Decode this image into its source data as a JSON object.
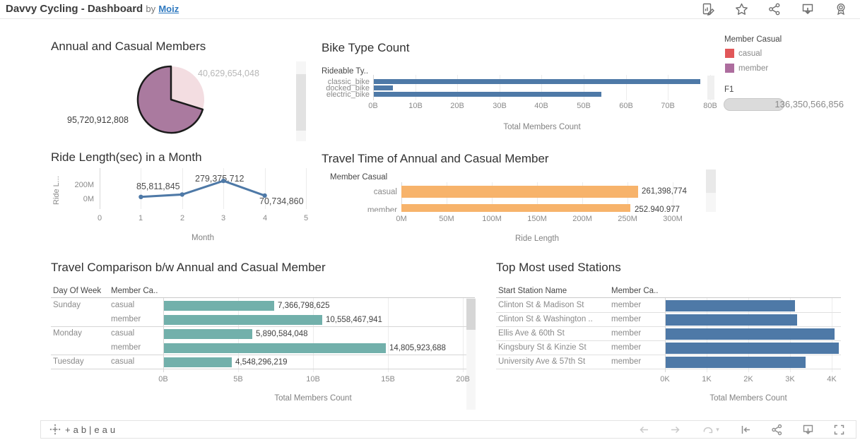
{
  "header": {
    "title": "Davvy Cycling - Dashboard",
    "by_text": "by",
    "author": "Moiz",
    "icons": [
      "metrics-edit",
      "favorite",
      "share",
      "download",
      "badge"
    ]
  },
  "legend": {
    "title": "Member Casual",
    "items": [
      {
        "label": "casual",
        "color": "#e15759"
      },
      {
        "label": "member",
        "color": "#ad6d9e"
      }
    ]
  },
  "f1_filter": {
    "label": "F1",
    "value": "136,350,566,856"
  },
  "chart_data": [
    {
      "id": "annual_casual_pie",
      "type": "pie",
      "title": "Annual and Casual Members",
      "slices": [
        {
          "label": "casual",
          "value": 40629654048,
          "display": "40,629,654,048",
          "color": "#f3dde1"
        },
        {
          "label": "member",
          "value": 95720912808,
          "display": "95,720,912,808",
          "color": "#aa7a9f",
          "outlined": true
        }
      ]
    },
    {
      "id": "bike_type_count",
      "type": "bar",
      "title": "Bike Type Count",
      "row_header": "Rideable Ty..",
      "categories": [
        "classic_bike",
        "docked_bike",
        "electric_bike"
      ],
      "values_billions": [
        77.5,
        4.5,
        54
      ],
      "values_estimated": true,
      "bar_color": "#4e79a7",
      "ticks": [
        "0B",
        "10B",
        "20B",
        "30B",
        "40B",
        "50B",
        "60B",
        "70B",
        "80B"
      ],
      "xlim_billions": [
        0,
        80
      ],
      "xlabel": "Total Members Count"
    },
    {
      "id": "ride_length_by_month",
      "type": "line",
      "title": "Ride Length(sec) in a Month",
      "ylabel": "Ride L...",
      "xlabel": "Month",
      "x": [
        1,
        2,
        3,
        4
      ],
      "y": [
        52000000,
        85811845,
        279375712,
        70734860
      ],
      "point_labels": [
        "",
        "85,811,845",
        "279,375,712",
        "70,734,860"
      ],
      "x_ticks": [
        "0",
        "1",
        "2",
        "3",
        "4",
        "5"
      ],
      "y_ticks": [
        "200M",
        "0M"
      ],
      "xlim": [
        0,
        5
      ],
      "line_color": "#4e79a7"
    },
    {
      "id": "travel_time",
      "type": "bar",
      "title": "Travel Time of Annual and Casual Member",
      "row_header": "Member Casual",
      "categories": [
        "casual",
        "member"
      ],
      "values": [
        261398774,
        252940977
      ],
      "value_labels": [
        "261,398,774",
        "252,940,977"
      ],
      "bar_color": "#f7b36b",
      "ticks": [
        "0M",
        "50M",
        "100M",
        "150M",
        "200M",
        "250M",
        "300M"
      ],
      "xlim_millions": [
        0,
        300
      ],
      "xlabel": "Ride Length",
      "clipped_note": "second row partially hidden by panel edge"
    },
    {
      "id": "travel_comparison",
      "type": "bar",
      "title": "Travel Comparison b/w Annual and Casual Member",
      "col_headers": [
        "Day Of Week",
        "Member Ca.."
      ],
      "rows": [
        {
          "day": "Sunday",
          "member_type": "casual",
          "value": 7366798625,
          "display": "7,366,798,625"
        },
        {
          "day": "",
          "member_type": "member",
          "value": 10558467941,
          "display": "10,558,467,941"
        },
        {
          "day": "Monday",
          "member_type": "casual",
          "value": 5890584048,
          "display": "5,890,584,048"
        },
        {
          "day": "",
          "member_type": "member",
          "value": 14805923688,
          "display": "14,805,923,688"
        },
        {
          "day": "Tuesday",
          "member_type": "casual",
          "value": 4548296219,
          "display": "4,548,296,219"
        }
      ],
      "bar_color": "#72b0ab",
      "ticks": [
        "0B",
        "5B",
        "10B",
        "15B",
        "20B"
      ],
      "xlim_billions": [
        0,
        20
      ],
      "xlabel": "Total Members Count"
    },
    {
      "id": "top_stations",
      "type": "bar",
      "title": "Top Most used Stations",
      "col_headers": [
        "Start Station Name",
        "Member Ca.."
      ],
      "rows": [
        {
          "station": "Clinton St & Madison St",
          "member_type": "member",
          "value": 3100
        },
        {
          "station": "Clinton St & Washington ..",
          "member_type": "member",
          "value": 3150
        },
        {
          "station": "Ellis Ave & 60th St",
          "member_type": "member",
          "value": 4050
        },
        {
          "station": "Kingsbury St & Kinzie St",
          "member_type": "member",
          "value": 4150
        },
        {
          "station": "University Ave & 57th St",
          "member_type": "member",
          "value": 3350
        }
      ],
      "values_estimated": true,
      "bar_color": "#4e79a7",
      "ticks": [
        "0K",
        "1K",
        "2K",
        "3K",
        "4K"
      ],
      "xlim": [
        0,
        4000
      ],
      "xlabel": "Total Members Count"
    }
  ],
  "toolbar": {
    "logo_text": "+ab|eau",
    "icons": [
      "undo",
      "redo",
      "replay",
      "revert",
      "share",
      "download",
      "fullscreen"
    ]
  }
}
